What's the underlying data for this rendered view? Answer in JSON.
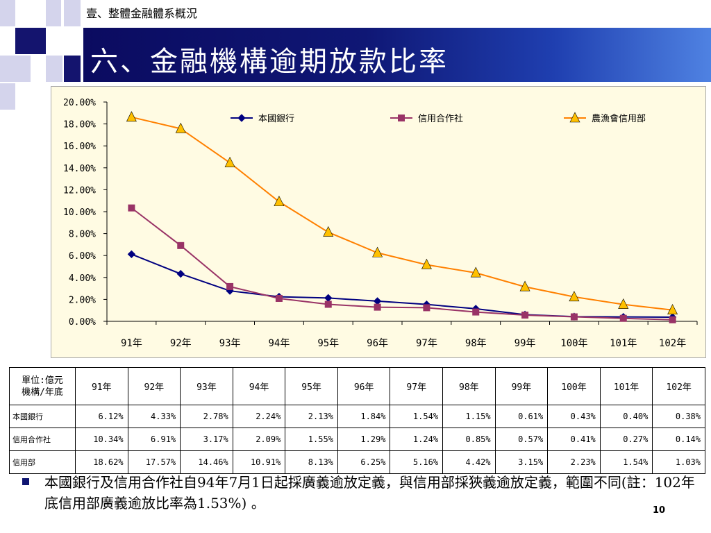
{
  "slide": {
    "section_label": "壹、整體金融體系概況",
    "title": "六、金融機構逾期放款比率",
    "note": "本國銀行及信用合作社自94年7月1日起採廣義逾放定義，與信用部採狹義逾放定義，範圍不同(註：102年底信用部廣義逾放比率為1.53%) 。",
    "page_number": "10"
  },
  "chart_data": {
    "type": "line",
    "categories": [
      "91年",
      "92年",
      "93年",
      "94年",
      "95年",
      "96年",
      "97年",
      "98年",
      "99年",
      "100年",
      "101年",
      "102年"
    ],
    "ylim": [
      0,
      20
    ],
    "yticks": [
      "0.00%",
      "2.00%",
      "4.00%",
      "6.00%",
      "8.00%",
      "10.00%",
      "12.00%",
      "14.00%",
      "16.00%",
      "18.00%",
      "20.00%"
    ],
    "legend_position": "top",
    "series": [
      {
        "name": "本國銀行",
        "marker": "diamond",
        "color": "#000080",
        "values": [
          6.12,
          4.33,
          2.78,
          2.24,
          2.13,
          1.84,
          1.54,
          1.15,
          0.61,
          0.43,
          0.4,
          0.38
        ]
      },
      {
        "name": "信用合作社",
        "marker": "square",
        "color": "#993366",
        "values": [
          10.34,
          6.91,
          3.17,
          2.09,
          1.55,
          1.29,
          1.24,
          0.85,
          0.57,
          0.41,
          0.27,
          0.14
        ]
      },
      {
        "name": "農漁會信用部",
        "marker": "triangle",
        "color": "#ff8000",
        "values": [
          18.62,
          17.57,
          14.46,
          10.91,
          8.13,
          6.25,
          5.16,
          4.42,
          3.15,
          2.23,
          1.54,
          1.03
        ]
      }
    ]
  },
  "table": {
    "corner_line1": "單位:億元",
    "corner_line2": "機構/年底",
    "columns": [
      "91年",
      "92年",
      "93年",
      "94年",
      "95年",
      "96年",
      "97年",
      "98年",
      "99年",
      "100年",
      "101年",
      "102年"
    ],
    "rows": [
      {
        "label": "本國銀行",
        "cells": [
          "6.12%",
          "4.33%",
          "2.78%",
          "2.24%",
          "2.13%",
          "1.84%",
          "1.54%",
          "1.15%",
          "0.61%",
          "0.43%",
          "0.40%",
          "0.38%"
        ]
      },
      {
        "label": "信用合作社",
        "cells": [
          "10.34%",
          "6.91%",
          "3.17%",
          "2.09%",
          "1.55%",
          "1.29%",
          "1.24%",
          "0.85%",
          "0.57%",
          "0.41%",
          "0.27%",
          "0.14%"
        ]
      },
      {
        "label": "信用部",
        "cells": [
          "18.62%",
          "17.57%",
          "14.46%",
          "10.91%",
          "8.13%",
          "6.25%",
          "5.16%",
          "4.42%",
          "3.15%",
          "2.23%",
          "1.54%",
          "1.03%"
        ]
      }
    ]
  }
}
